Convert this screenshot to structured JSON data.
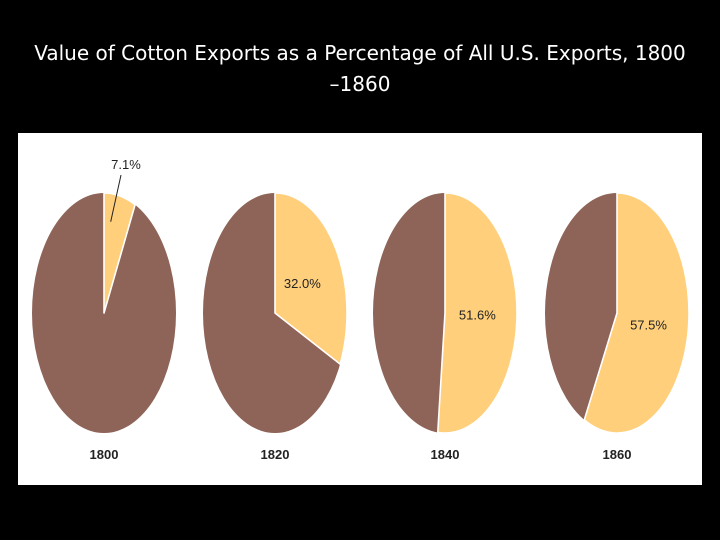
{
  "title": {
    "line1": "Value of Cotton Exports as a Percentage of All U.S. Exports, 1800",
    "line2": "–1860"
  },
  "colors": {
    "cotton": "#FFCF7B",
    "other": "#8E6358",
    "background": "#000000",
    "panel": "#FFFFFF"
  },
  "chart_data": {
    "type": "pie",
    "title": "Value of Cotton Exports as a Percentage of All U.S. Exports, 1800–1860",
    "pies": [
      {
        "year": "1800",
        "cotton_percent": 7.1,
        "label": "7.1%",
        "label_placement": "outside"
      },
      {
        "year": "1820",
        "cotton_percent": 32.0,
        "label": "32.0%",
        "label_placement": "inside"
      },
      {
        "year": "1840",
        "cotton_percent": 51.6,
        "label": "51.6%",
        "label_placement": "inside"
      },
      {
        "year": "1860",
        "cotton_percent": 57.5,
        "label": "57.5%",
        "label_placement": "inside"
      }
    ]
  }
}
